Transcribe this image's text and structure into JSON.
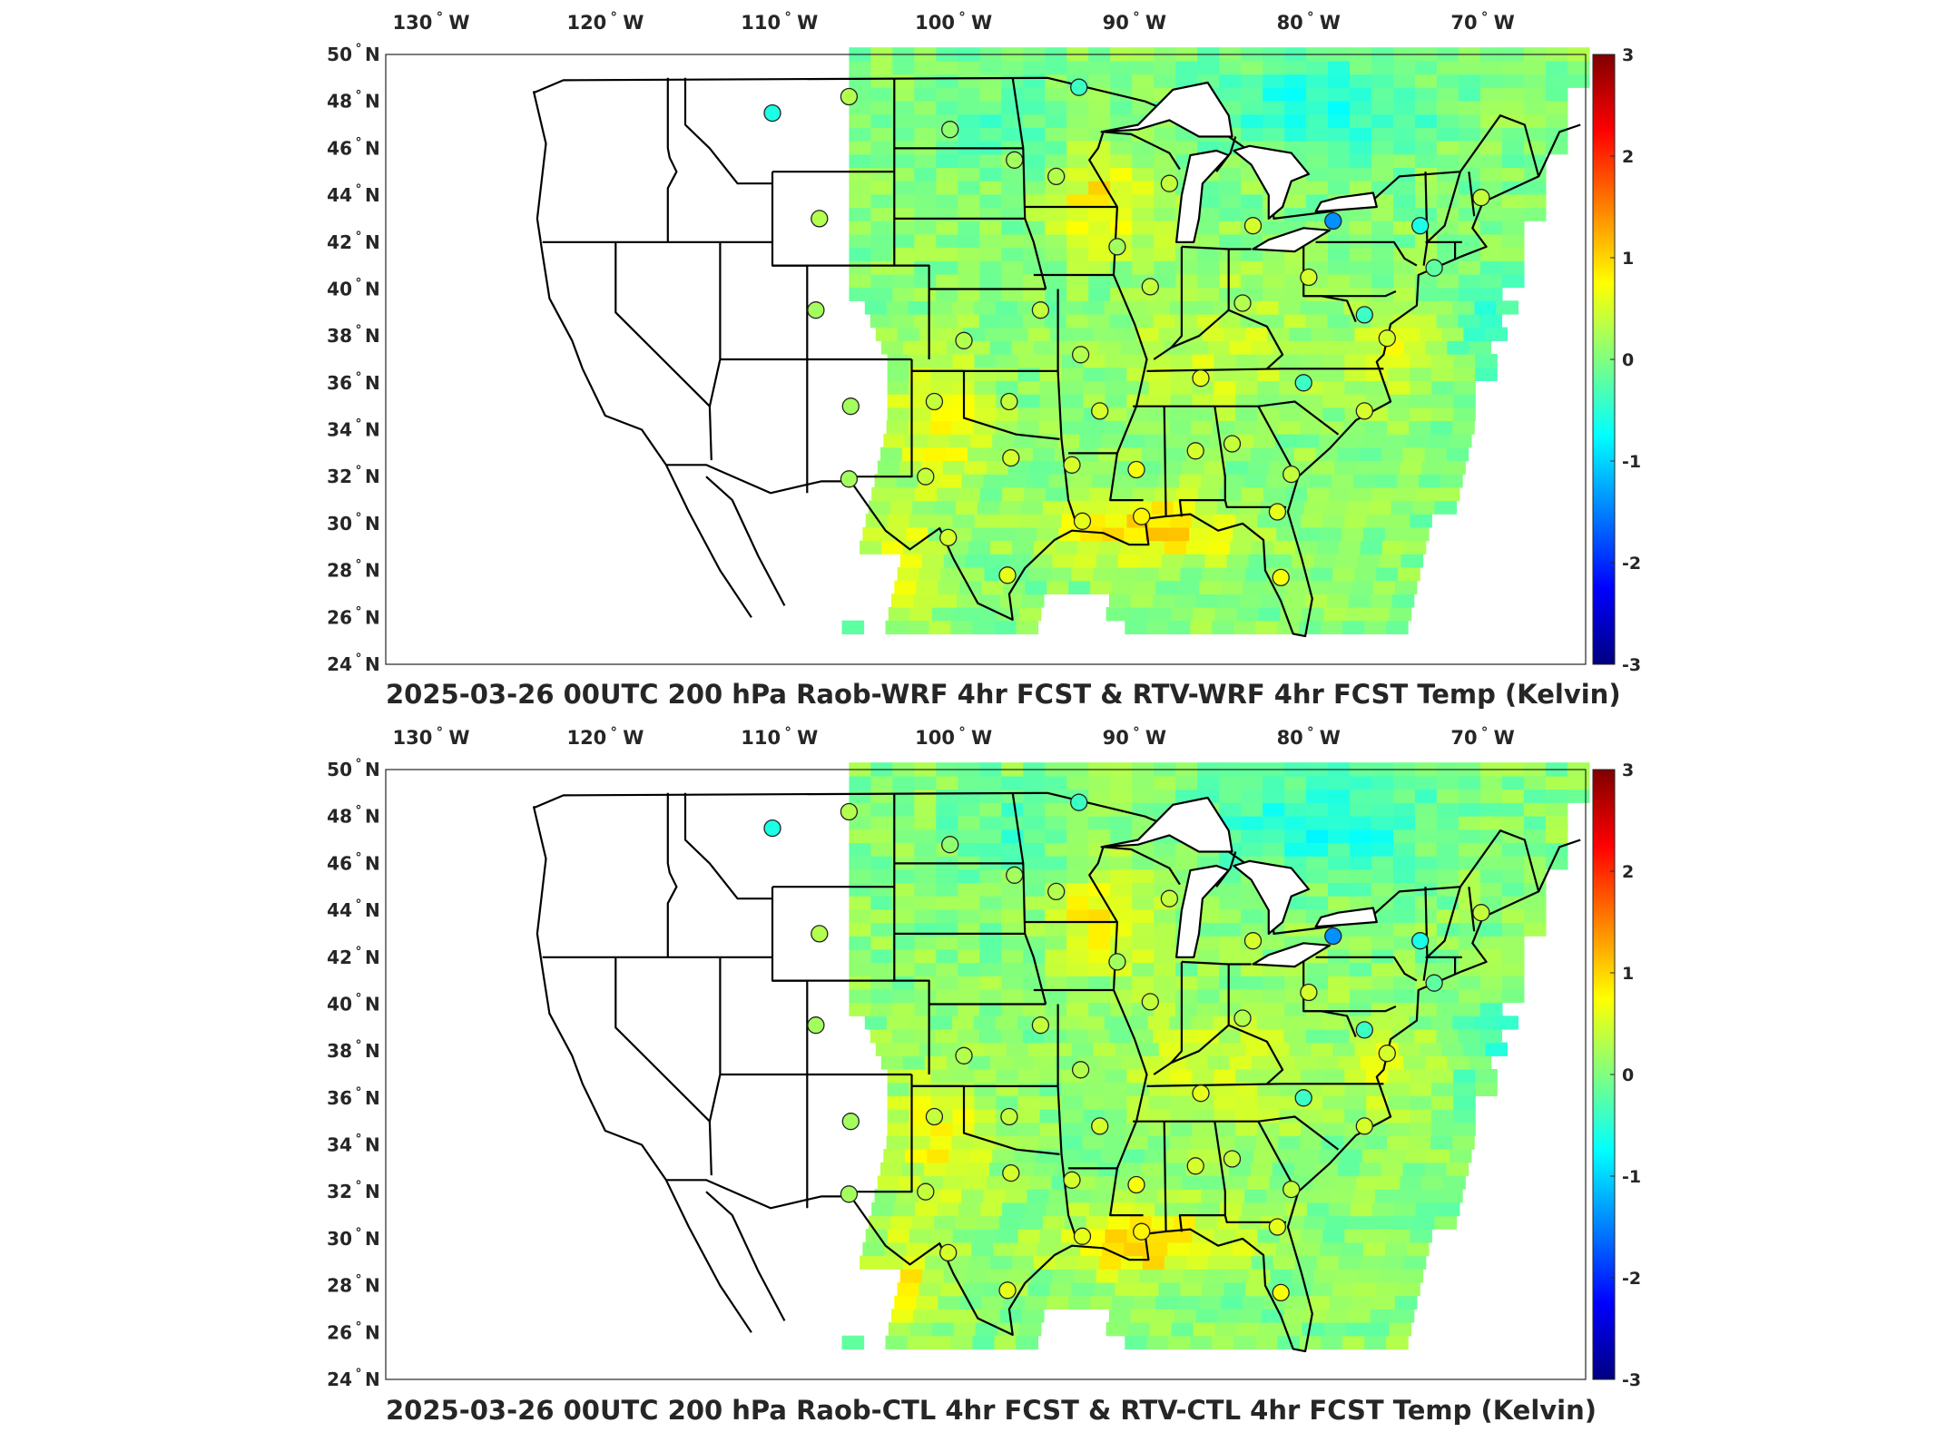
{
  "panels": [
    {
      "title": "2025-03-26 00UTC 200 hPa Raob-WRF 4hr FCST & RTV-WRF 4hr FCST Temp (Kelvin)"
    },
    {
      "title": "2025-03-26 00UTC 200 hPa Raob-CTL 4hr FCST & RTV-CTL 4hr FCST Temp (Kelvin)"
    }
  ],
  "map": {
    "lon_ticks": [
      "130",
      "120",
      "110",
      "100",
      "90",
      "80",
      "70"
    ],
    "lon_dir": "W",
    "lat_ticks": [
      "24",
      "26",
      "28",
      "30",
      "32",
      "34",
      "36",
      "38",
      "40",
      "42",
      "44",
      "46",
      "48",
      "50"
    ],
    "lat_dir": "N",
    "degree_symbol": "°"
  },
  "colorbar": {
    "ticks": [
      "3",
      "2",
      "1",
      "0",
      "-1",
      "-2",
      "-3"
    ],
    "colors": [
      "#000080",
      "#0000ff",
      "#0080ff",
      "#00ffff",
      "#80ff80",
      "#ffff00",
      "#ff8000",
      "#ff0000",
      "#800000"
    ]
  },
  "raob_stations": [
    {
      "lon": -111.0,
      "lat": 47.5,
      "v": -0.6
    },
    {
      "lon": -106.6,
      "lat": 48.2,
      "v": 0.3
    },
    {
      "lon": -100.8,
      "lat": 46.8,
      "v": 0.1
    },
    {
      "lon": -97.1,
      "lat": 45.5,
      "v": 0.2
    },
    {
      "lon": -93.4,
      "lat": 48.6,
      "v": -0.4
    },
    {
      "lon": -94.7,
      "lat": 44.8,
      "v": 0.3
    },
    {
      "lon": -88.2,
      "lat": 44.5,
      "v": 0.4
    },
    {
      "lon": -108.3,
      "lat": 43.0,
      "v": 0.3
    },
    {
      "lon": -91.2,
      "lat": 41.8,
      "v": 0.2
    },
    {
      "lon": -83.4,
      "lat": 42.7,
      "v": 0.5
    },
    {
      "lon": -78.8,
      "lat": 42.9,
      "v": -1.4
    },
    {
      "lon": -73.8,
      "lat": 42.7,
      "v": -0.6
    },
    {
      "lon": -70.3,
      "lat": 43.9,
      "v": 0.4
    },
    {
      "lon": -73.0,
      "lat": 40.9,
      "v": -0.2
    },
    {
      "lon": -108.5,
      "lat": 39.1,
      "v": 0.2
    },
    {
      "lon": -89.3,
      "lat": 40.1,
      "v": 0.4
    },
    {
      "lon": -84.0,
      "lat": 39.4,
      "v": 0.3
    },
    {
      "lon": -80.2,
      "lat": 40.5,
      "v": 0.5
    },
    {
      "lon": -77.0,
      "lat": 38.9,
      "v": -0.4
    },
    {
      "lon": -75.7,
      "lat": 37.9,
      "v": 0.5
    },
    {
      "lon": -95.6,
      "lat": 39.1,
      "v": 0.4
    },
    {
      "lon": -100.0,
      "lat": 37.8,
      "v": 0.3
    },
    {
      "lon": -93.3,
      "lat": 37.2,
      "v": 0.3
    },
    {
      "lon": -86.4,
      "lat": 36.2,
      "v": 0.6
    },
    {
      "lon": -80.5,
      "lat": 36.0,
      "v": -0.4
    },
    {
      "lon": -106.5,
      "lat": 35.0,
      "v": 0.2
    },
    {
      "lon": -101.7,
      "lat": 35.2,
      "v": 0.4
    },
    {
      "lon": -97.4,
      "lat": 35.2,
      "v": 0.4
    },
    {
      "lon": -92.2,
      "lat": 34.8,
      "v": 0.5
    },
    {
      "lon": -77.0,
      "lat": 34.8,
      "v": 0.5
    },
    {
      "lon": -106.6,
      "lat": 31.9,
      "v": 0.2
    },
    {
      "lon": -102.2,
      "lat": 32.0,
      "v": 0.4
    },
    {
      "lon": -97.3,
      "lat": 32.8,
      "v": 0.5
    },
    {
      "lon": -93.8,
      "lat": 32.5,
      "v": 0.5
    },
    {
      "lon": -90.1,
      "lat": 32.3,
      "v": 0.7
    },
    {
      "lon": -86.7,
      "lat": 33.1,
      "v": 0.5
    },
    {
      "lon": -84.6,
      "lat": 33.4,
      "v": 0.4
    },
    {
      "lon": -81.2,
      "lat": 32.1,
      "v": 0.4
    },
    {
      "lon": -93.2,
      "lat": 30.1,
      "v": 0.6
    },
    {
      "lon": -89.8,
      "lat": 30.3,
      "v": 0.8
    },
    {
      "lon": -82.0,
      "lat": 30.5,
      "v": 0.6
    },
    {
      "lon": -100.9,
      "lat": 29.4,
      "v": 0.5
    },
    {
      "lon": -97.5,
      "lat": 27.8,
      "v": 0.6
    },
    {
      "lon": -81.8,
      "lat": 27.7,
      "v": 0.7
    }
  ]
}
